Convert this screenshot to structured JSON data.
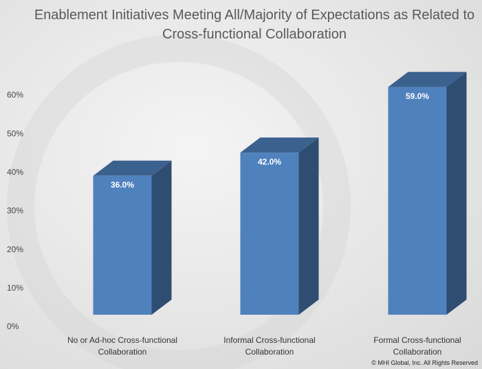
{
  "chart_data": {
    "type": "bar3d",
    "title": "Enablement Initiatives Meeting All/Majority of Expectations as Related to Cross-functional Collaboration",
    "categories": [
      "No or Ad-hoc Cross-functional Collaboration",
      "Informal Cross-functional Collaboration",
      "Formal Cross-functional Collaboration"
    ],
    "values": [
      36,
      42,
      59
    ],
    "value_labels": [
      "36.0%",
      "42.0%",
      "59.0%"
    ],
    "color": "#4f81bd",
    "ylim": [
      0,
      60
    ],
    "yticks": [
      {
        "value": 0,
        "label": "0%"
      },
      {
        "value": 10,
        "label": "10%"
      },
      {
        "value": 20,
        "label": "20%"
      },
      {
        "value": 30,
        "label": "30%"
      },
      {
        "value": 40,
        "label": "40%"
      },
      {
        "value": 50,
        "label": "50%"
      },
      {
        "value": 60,
        "label": "60%"
      }
    ],
    "grid": false,
    "footnote": "© MHI Global, Inc. All Rights Reserved"
  }
}
